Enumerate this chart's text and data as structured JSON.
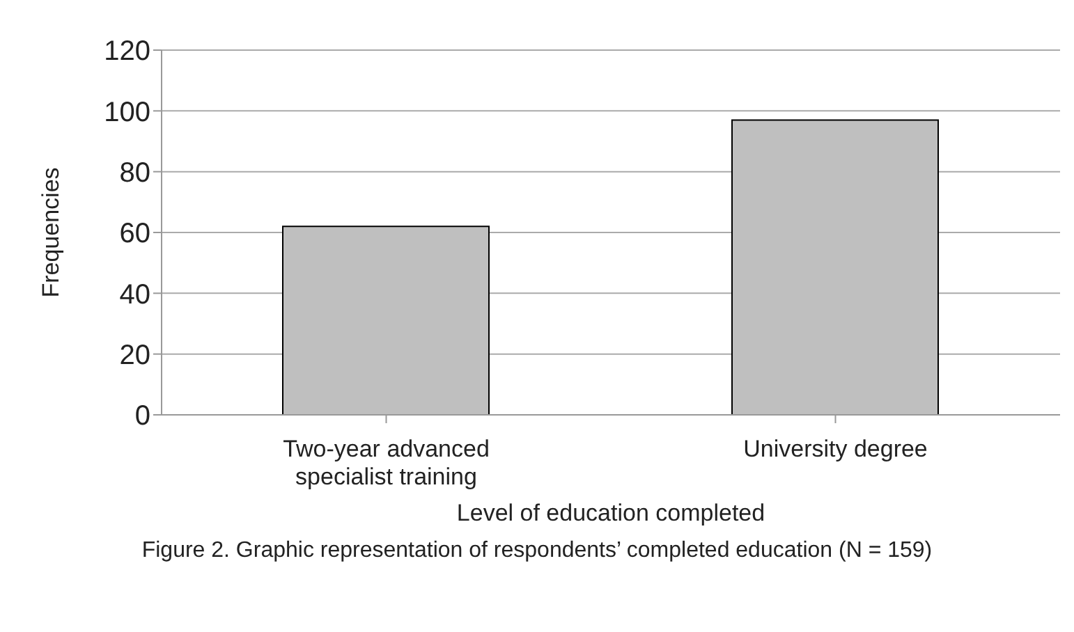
{
  "chart_data": {
    "type": "bar",
    "xlabel": "Level of education completed",
    "ylabel": "Frequencies",
    "categories": [
      "Two-year advanced specialist training",
      "University degree"
    ],
    "values": [
      62,
      97
    ],
    "color": "#bfbfbf",
    "ylim": [
      0,
      120
    ],
    "yticks": [
      0,
      20,
      40,
      60,
      80,
      100,
      120
    ],
    "grid": "y",
    "annotations": [
      "Figure 2. Graphic representation of respondents’ completed education (N = 159)"
    ]
  }
}
